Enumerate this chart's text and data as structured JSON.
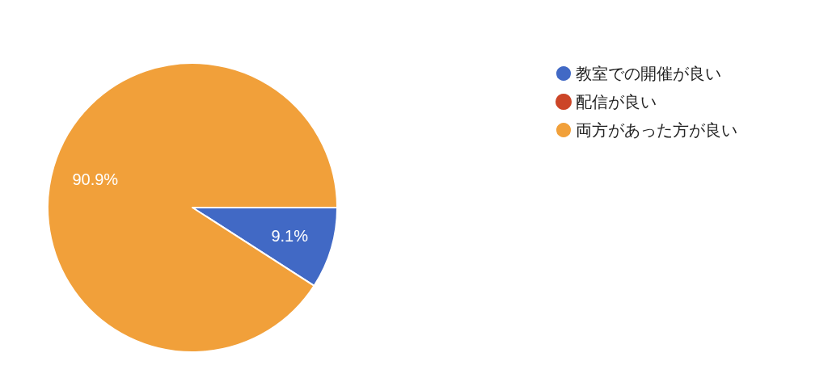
{
  "chart_data": {
    "type": "pie",
    "categories": [
      "教室での開催が良い",
      "配信が良い",
      "両方があった方が良い"
    ],
    "values": [
      9.1,
      0,
      90.9
    ],
    "colors": [
      "#4169c5",
      "#cc4527",
      "#f1a03a"
    ],
    "value_labels": [
      "9.1%",
      null,
      "90.9%"
    ],
    "legend": "top right"
  }
}
